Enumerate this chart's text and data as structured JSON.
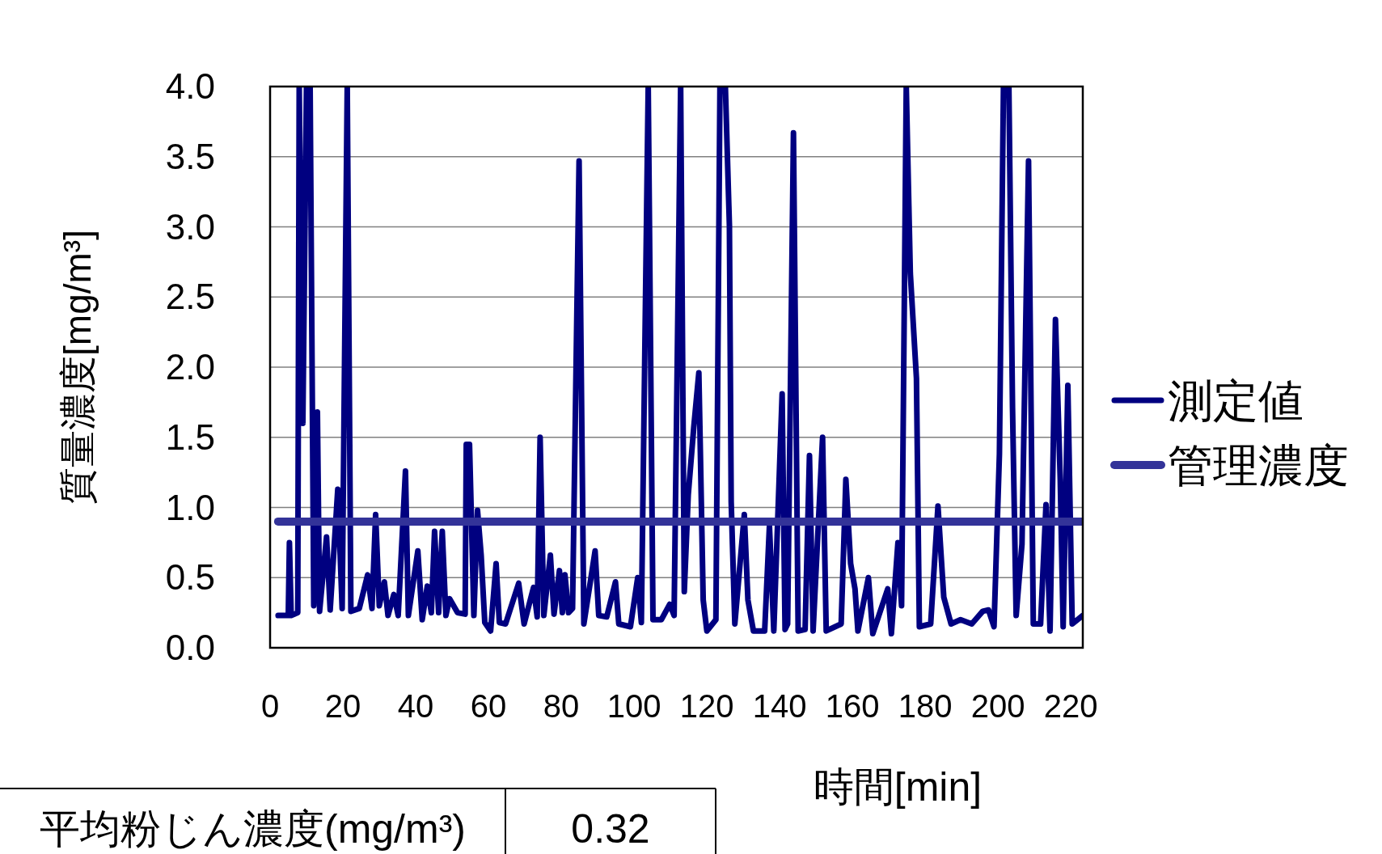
{
  "chart_data": {
    "type": "line",
    "xlabel": "時間[min]",
    "ylabel": "質量濃度[mg/m³]",
    "xlim": [
      0,
      223.3
    ],
    "xticks": [
      0,
      20,
      40,
      60,
      80,
      100,
      120,
      140,
      160,
      180,
      200,
      220
    ],
    "ylim": [
      0,
      4
    ],
    "yticks": [
      {
        "value": 0,
        "label": "0.0"
      },
      {
        "value": 0.5,
        "label": "0.5"
      },
      {
        "value": 1,
        "label": "1.0"
      },
      {
        "value": 1.5,
        "label": "1.5"
      },
      {
        "value": 2,
        "label": "2.0"
      },
      {
        "value": 2.5,
        "label": "2.5"
      },
      {
        "value": 3,
        "label": "3.0"
      },
      {
        "value": 3.5,
        "label": "3.5"
      },
      {
        "value": 4,
        "label": "4.0"
      }
    ],
    "grid": "y",
    "legend": "right",
    "series": [
      {
        "name": "測定値",
        "color": "#000080",
        "x": [
          2.2,
          5.0,
          5.3,
          5.8,
          7.6,
          8.0,
          9.0,
          10.0,
          11.0,
          12.0,
          13.0,
          13.6,
          15.5,
          16.5,
          18.6,
          19.8,
          21.2,
          22.2,
          24.5,
          26.8,
          28.0,
          29.0,
          30.0,
          31.4,
          32.4,
          34.0,
          35.2,
          37.2,
          38.0,
          40.6,
          41.8,
          43.2,
          44.3,
          45.2,
          46.3,
          47.3,
          48.3,
          49.3,
          51.5,
          53.6,
          53.9,
          54.8,
          56.0,
          57.0,
          58.0,
          59.0,
          60.6,
          62.1,
          63.0,
          64.7,
          68.3,
          69.8,
          72.4,
          73.4,
          74.2,
          75.2,
          77.0,
          78.0,
          79.5,
          80.3,
          81.0,
          82.0,
          83.1,
          84.9,
          86.2,
          89.3,
          90.3,
          92.5,
          94.9,
          95.8,
          99.0,
          101.0,
          102.0,
          103.9,
          105.2,
          107.5,
          109.8,
          111.0,
          112.8,
          113.8,
          114.9,
          116.4,
          117.8,
          119.0,
          120.0,
          122.5,
          123.6,
          125.1,
          126.2,
          126.7,
          127.7,
          130.3,
          131.3,
          132.8,
          135.9,
          137.2,
          138.4,
          140.7,
          141.5,
          142.2,
          143.8,
          145.1,
          147.0,
          148.2,
          149.2,
          151.8,
          152.8,
          156.9,
          158.2,
          159.5,
          160.7,
          161.5,
          164.4,
          165.6,
          169.7,
          170.7,
          172.5,
          173.5,
          174.8,
          175.9,
          177.6,
          178.4,
          181.5,
          183.5,
          185.1,
          187.1,
          189.7,
          192.8,
          195.8,
          197.4,
          198.9,
          200.4,
          201.5,
          203.0,
          204.0,
          205.0,
          206.6,
          208.4,
          209.7,
          211.7,
          213.2,
          214.3,
          215.8,
          217.1,
          217.9,
          219.2,
          220.4,
          223.3
        ],
        "values": [
          0.23,
          0.23,
          0.75,
          0.23,
          0.25,
          4.0,
          1.6,
          4.0,
          4.0,
          0.3,
          1.68,
          0.26,
          0.79,
          0.27,
          1.13,
          0.28,
          4.0,
          0.26,
          0.28,
          0.52,
          0.28,
          0.95,
          0.3,
          0.47,
          0.23,
          0.38,
          0.23,
          1.26,
          0.23,
          0.69,
          0.2,
          0.44,
          0.25,
          0.83,
          0.25,
          0.83,
          0.23,
          0.35,
          0.25,
          0.24,
          1.45,
          1.45,
          0.23,
          0.98,
          0.66,
          0.18,
          0.12,
          0.6,
          0.18,
          0.17,
          0.46,
          0.17,
          0.43,
          0.22,
          1.5,
          0.23,
          0.66,
          0.24,
          0.55,
          0.25,
          0.52,
          0.25,
          0.28,
          3.47,
          0.17,
          0.69,
          0.23,
          0.22,
          0.47,
          0.17,
          0.15,
          0.5,
          0.18,
          4.0,
          0.2,
          0.2,
          0.31,
          0.23,
          4.0,
          0.4,
          1.09,
          1.57,
          1.96,
          0.34,
          0.12,
          0.2,
          4.0,
          4.0,
          3.01,
          1.04,
          0.17,
          0.95,
          0.34,
          0.12,
          0.12,
          0.87,
          0.12,
          1.81,
          0.13,
          0.17,
          3.67,
          0.12,
          0.13,
          1.37,
          0.12,
          1.5,
          0.12,
          0.17,
          1.2,
          0.6,
          0.42,
          0.12,
          0.5,
          0.1,
          0.42,
          0.1,
          0.75,
          0.3,
          4.0,
          2.67,
          1.92,
          0.15,
          0.17,
          1.01,
          0.36,
          0.17,
          0.2,
          0.17,
          0.26,
          0.27,
          0.15,
          1.38,
          4.0,
          4.0,
          1.71,
          0.23,
          0.74,
          3.47,
          0.17,
          0.17,
          1.02,
          0.12,
          2.34,
          1.2,
          0.15,
          1.87,
          0.17,
          0.23
        ]
      },
      {
        "name": "管理濃度",
        "color": "#333399",
        "x": [
          2.2,
          223.3
        ],
        "values": [
          0.9,
          0.9
        ]
      }
    ],
    "annotations": [
      "平均粉じん濃度(mg/m³)",
      "0.32"
    ]
  }
}
